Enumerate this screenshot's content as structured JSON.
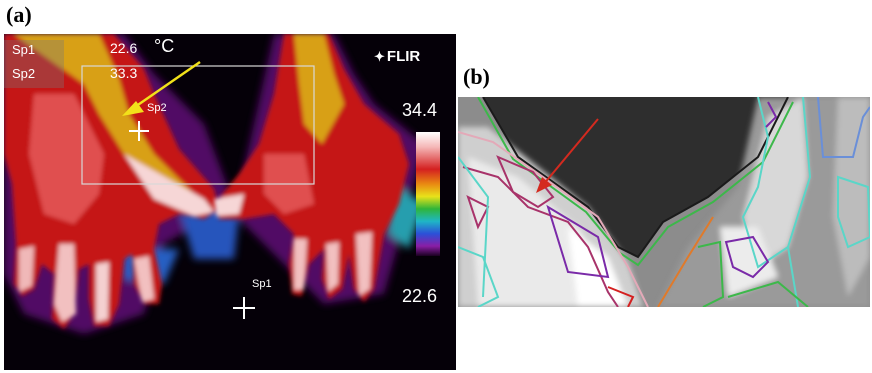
{
  "panels": {
    "a": {
      "label": "(a)",
      "spots": [
        {
          "name": "Sp1",
          "value": "22.6",
          "unit": "°C"
        },
        {
          "name": "Sp2",
          "value": "33.3"
        }
      ],
      "brand": "FLIR",
      "scale_max": "34.4",
      "scale_min": "22.6",
      "marker_sp2": "Sp2",
      "marker_sp1": "Sp1",
      "arrow_color": "#f2e11a"
    },
    "b": {
      "label": "(b)",
      "arrow_color": "#d42a1f"
    }
  }
}
